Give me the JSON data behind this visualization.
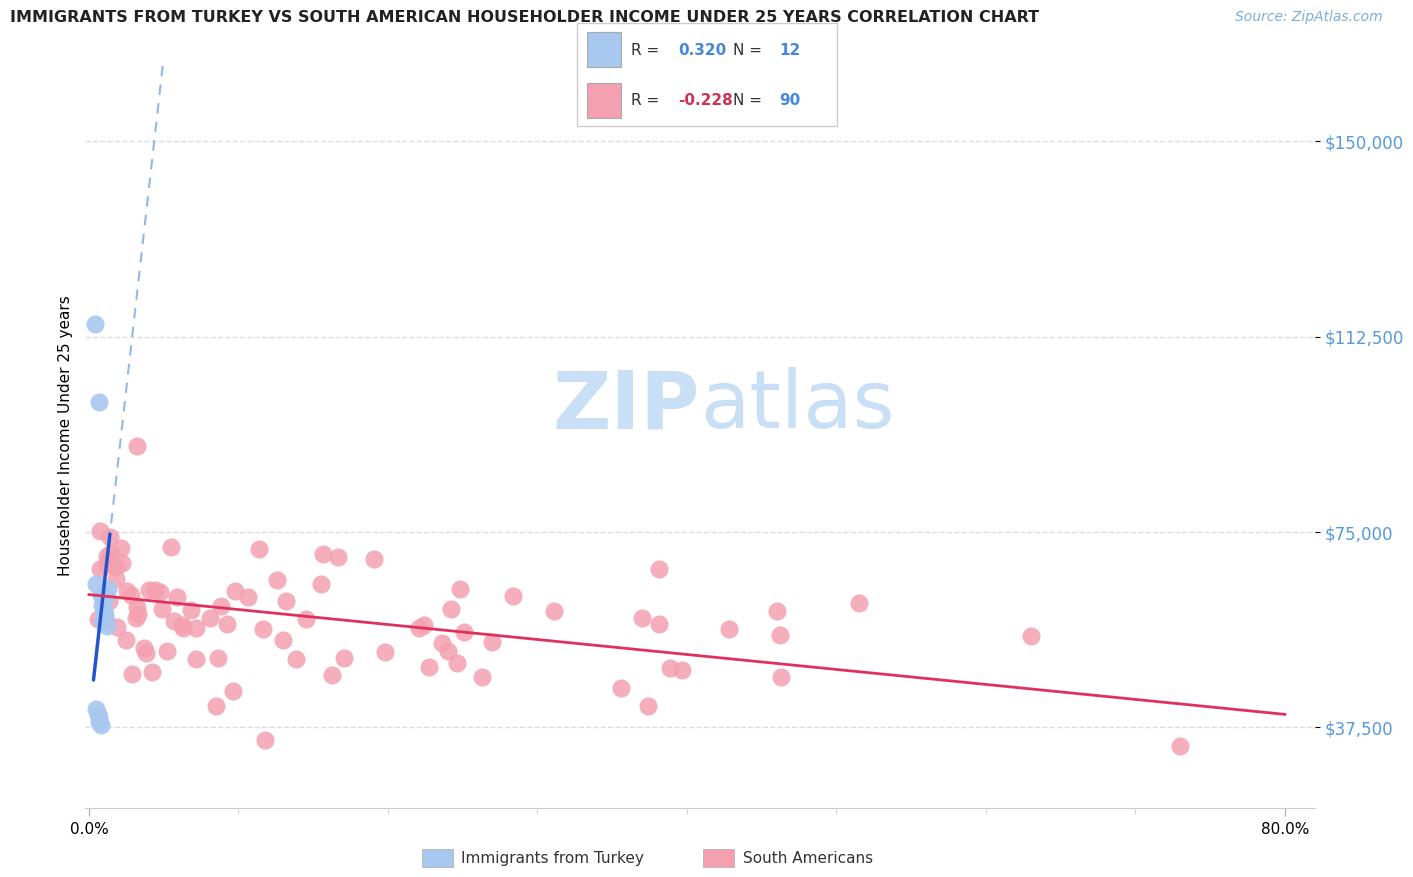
{
  "title": "IMMIGRANTS FROM TURKEY VS SOUTH AMERICAN HOUSEHOLDER INCOME UNDER 25 YEARS CORRELATION CHART",
  "source": "Source: ZipAtlas.com",
  "ylabel": "Householder Income Under 25 years",
  "xlim": [
    -0.003,
    0.82
  ],
  "ylim": [
    22000,
    165000
  ],
  "ytick_labels": [
    "$37,500",
    "$75,000",
    "$112,500",
    "$150,000"
  ],
  "ytick_vals": [
    37500,
    75000,
    112500,
    150000
  ],
  "turkey_R": 0.32,
  "turkey_N": 12,
  "sa_R": -0.228,
  "sa_N": 90,
  "turkey_color": "#a8c8f0",
  "sa_color": "#f4a0b0",
  "turkey_line_color": "#2255cc",
  "turkey_dash_color": "#90b8e8",
  "sa_line_color": "#e03060",
  "watermark_zip": "ZIP",
  "watermark_atlas": "atlas",
  "watermark_color": "#c8dff5",
  "background_color": "#ffffff",
  "grid_color": "#dddddd",
  "legend_text_color": "#333333",
  "legend_value_color": "#4488dd",
  "legend_neg_color": "#cc3355",
  "ytick_color": "#5599dd",
  "source_color": "#7aaedc"
}
